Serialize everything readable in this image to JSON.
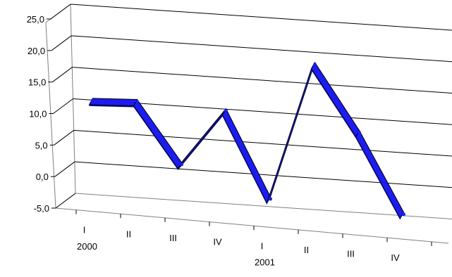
{
  "chart_data": {
    "type": "line",
    "style": "3d-ribbon",
    "title": "",
    "xlabel": "",
    "ylabel": "",
    "ylim": [
      -5,
      25
    ],
    "y_ticks": [
      "25,0",
      "20,0",
      "15,0",
      "10,0",
      "5,0",
      "0,0",
      "-5,0"
    ],
    "y_tick_values": [
      25,
      20,
      15,
      10,
      5,
      0,
      -5
    ],
    "categories": [
      "I",
      "II",
      "III",
      "IV",
      "I",
      "II",
      "III",
      "IV"
    ],
    "year_labels": [
      {
        "category_index": 0,
        "label": "2000"
      },
      {
        "category_index": 4,
        "label": "2001"
      }
    ],
    "series": [
      {
        "values": [
          11.2,
          11.5,
          2.0,
          11.0,
          -2.5,
          19.3,
          9.0,
          -3.5
        ]
      }
    ],
    "grid": true,
    "legend": "none"
  },
  "colors": {
    "series": "#1c1cf2",
    "series_shade": "#0a0a66",
    "grid": "#000000",
    "frame": "#808080"
  }
}
